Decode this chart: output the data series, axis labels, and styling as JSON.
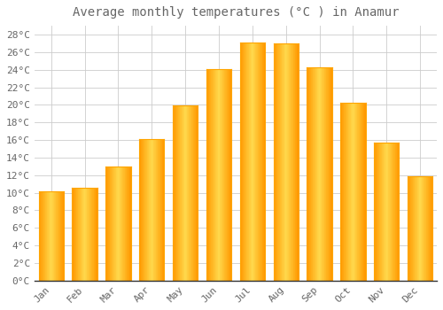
{
  "title": "Average monthly temperatures (°C ) in Anamur",
  "months": [
    "Jan",
    "Feb",
    "Mar",
    "Apr",
    "May",
    "Jun",
    "Jul",
    "Aug",
    "Sep",
    "Oct",
    "Nov",
    "Dec"
  ],
  "values": [
    10.2,
    10.6,
    13.0,
    16.1,
    19.9,
    24.1,
    27.1,
    27.0,
    24.3,
    20.2,
    15.7,
    11.9
  ],
  "bar_color_center": "#FFD966",
  "bar_color_edge": "#FFA500",
  "background_color": "#FFFFFF",
  "plot_bg_color": "#FFFFFF",
  "grid_color": "#CCCCCC",
  "text_color": "#666666",
  "ylim": [
    0,
    29
  ],
  "ytick_step": 2,
  "title_fontsize": 10,
  "tick_fontsize": 8
}
